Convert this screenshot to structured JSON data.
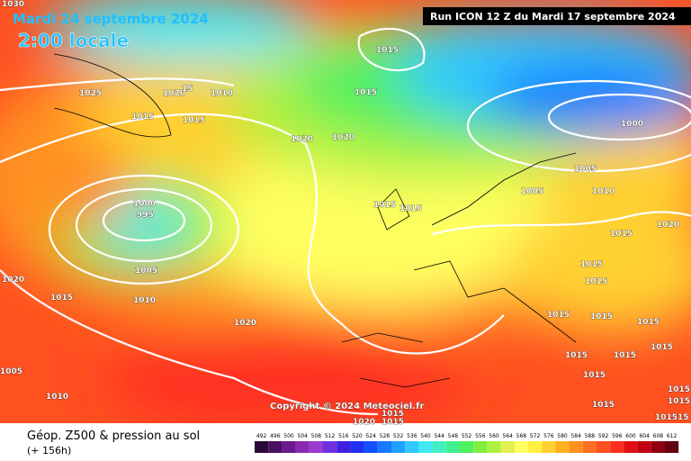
{
  "header": {
    "date": "Mardi 24 septembre 2024",
    "time": "2:00 locale",
    "run": "Run ICON 12 Z du Mardi 17 septembre 2024"
  },
  "copyright": "Copyright © 2024 Meteociel.fr",
  "footer": {
    "title": "Géop. Z500 & pression au sol",
    "lead": "(+ 156h)"
  },
  "isobar_labels": [
    "1030",
    "1025",
    "1020",
    "15",
    "1010",
    "1015",
    "1015",
    "1015",
    "1015",
    "1020",
    "1020",
    "1000",
    "1005",
    "1005",
    "1010",
    "1015",
    "1015",
    "1000",
    "995",
    "1020",
    "1015",
    "1015",
    "1015",
    "1005",
    "1020",
    "1015",
    "1010",
    "1020",
    "1015",
    "1015",
    "1015",
    "1015",
    "1015",
    "1015",
    "1015",
    "1005",
    "1010",
    "1015",
    "1015",
    "1015",
    "1015",
    "1020",
    "1015",
    "101515"
  ],
  "scale": {
    "values": [
      492,
      496,
      500,
      504,
      508,
      512,
      516,
      520,
      524,
      528,
      532,
      536,
      540,
      544,
      548,
      552,
      556,
      560,
      564,
      568,
      572,
      576,
      580,
      584,
      588,
      592,
      596,
      600,
      604,
      608,
      612
    ],
    "colors": [
      "#2a0a3a",
      "#4a1060",
      "#6a1a8a",
      "#8a2ab0",
      "#9a3ad0",
      "#7030e0",
      "#4020e0",
      "#2030f0",
      "#1050ff",
      "#1878ff",
      "#20a0ff",
      "#30c8ff",
      "#40e8f0",
      "#40f0c0",
      "#40f090",
      "#50f060",
      "#80f040",
      "#b0f040",
      "#e0f050",
      "#ffff60",
      "#fff040",
      "#ffd030",
      "#ffb020",
      "#ff9020",
      "#ff7020",
      "#ff5020",
      "#ff3020",
      "#e01010",
      "#c00010",
      "#900010",
      "#600010"
    ]
  }
}
